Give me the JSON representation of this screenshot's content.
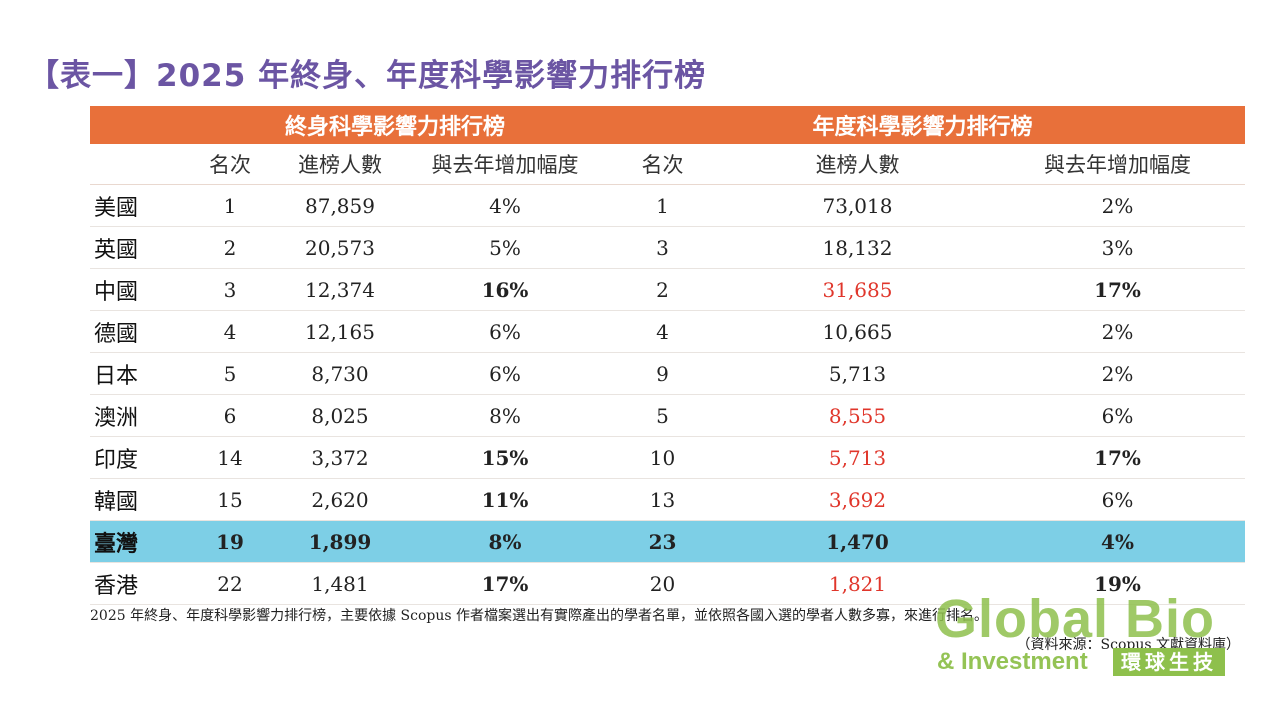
{
  "title": "【表一】2025 年終身、年度科學影響力排行榜",
  "table": {
    "group_headers": [
      "終身科學影響力排行榜",
      "年度科學影響力排行榜"
    ],
    "sub_headers": [
      "名次",
      "進榜人數",
      "與去年增加幅度",
      "名次",
      "進榜人數",
      "與去年增加幅度"
    ],
    "rows": [
      {
        "country": "美國",
        "l_rank": "1",
        "l_count": "87,859",
        "l_growth": "4%",
        "y_rank": "1",
        "y_count": "73,018",
        "y_growth": "2%"
      },
      {
        "country": "英國",
        "l_rank": "2",
        "l_count": "20,573",
        "l_growth": "5%",
        "y_rank": "3",
        "y_count": "18,132",
        "y_growth": "3%"
      },
      {
        "country": "中國",
        "l_rank": "3",
        "l_count": "12,374",
        "l_growth": "16%",
        "y_rank": "2",
        "y_count": "31,685",
        "y_growth": "17%"
      },
      {
        "country": "德國",
        "l_rank": "4",
        "l_count": "12,165",
        "l_growth": "6%",
        "y_rank": "4",
        "y_count": "10,665",
        "y_growth": "2%"
      },
      {
        "country": "日本",
        "l_rank": "5",
        "l_count": "8,730",
        "l_growth": "6%",
        "y_rank": "9",
        "y_count": "5,713",
        "y_growth": "2%"
      },
      {
        "country": "澳洲",
        "l_rank": "6",
        "l_count": "8,025",
        "l_growth": "8%",
        "y_rank": "5",
        "y_count": "8,555",
        "y_growth": "6%"
      },
      {
        "country": "印度",
        "l_rank": "14",
        "l_count": "3,372",
        "l_growth": "15%",
        "y_rank": "10",
        "y_count": "5,713",
        "y_growth": "17%"
      },
      {
        "country": "韓國",
        "l_rank": "15",
        "l_count": "2,620",
        "l_growth": "11%",
        "y_rank": "13",
        "y_count": "3,692",
        "y_growth": "6%"
      },
      {
        "country": "臺灣",
        "l_rank": "19",
        "l_count": "1,899",
        "l_growth": "8%",
        "y_rank": "23",
        "y_count": "1,470",
        "y_growth": "4%"
      },
      {
        "country": "香港",
        "l_rank": "22",
        "l_count": "1,481",
        "l_growth": "17%",
        "y_rank": "20",
        "y_count": "1,821",
        "y_growth": "19%"
      }
    ]
  },
  "note": "2025 年終身、年度科學影響力排行榜，主要依據 Scopus 作者檔案選出有實際產出的學者名單，並依照各國入選的學者人數多寡，來進行排名。",
  "source": "（資料來源：Scopus 文獻資料庫）",
  "logo": {
    "line1": "Global Bio",
    "line2": "& Investment",
    "badge": "環球生技"
  }
}
